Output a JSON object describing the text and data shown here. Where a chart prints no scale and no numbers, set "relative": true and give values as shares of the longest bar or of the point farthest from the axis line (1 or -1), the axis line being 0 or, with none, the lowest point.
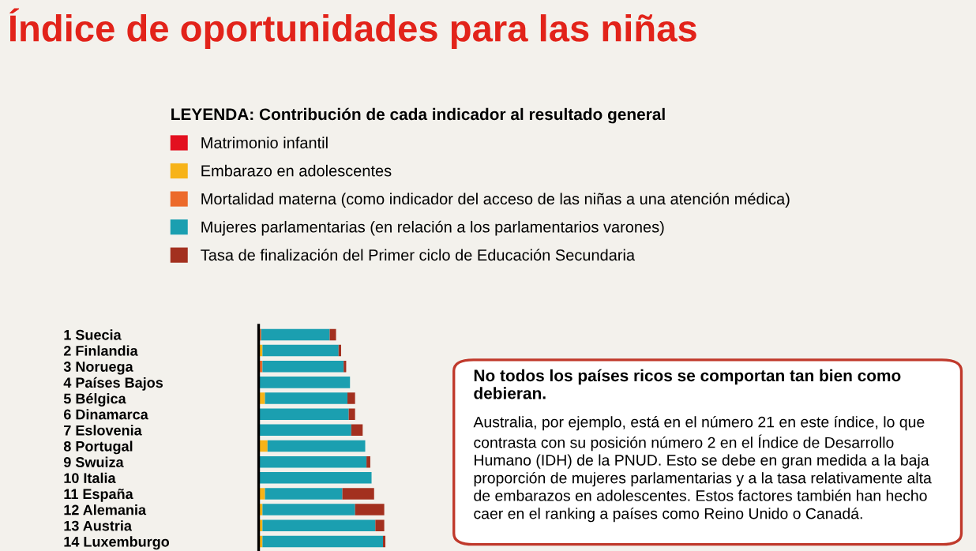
{
  "chart_data": {
    "type": "bar",
    "orientation": "horizontal",
    "stacked": true,
    "relative": true,
    "title": "Índice de oportunidades para las niñas",
    "legend_title": "LEYENDA: Contribución de cada indicador al resultado general",
    "legend": "top",
    "categories": [
      "1 Suecia",
      "2 Finlandia",
      "3 Noruega",
      "4 Países Bajos",
      "5 Bélgica",
      "6 Dinamarca",
      "7 Eslovenia",
      "8 Portugal",
      "9 Swuiza",
      "10 Italia",
      "11 España",
      "12 Alemania",
      "13 Austria",
      "14 Luxemburgo"
    ],
    "series": [
      {
        "name": "Matrimonio infantil",
        "color": "#e3101f",
        "values": [
          null,
          null,
          null,
          null,
          null,
          null,
          null,
          null,
          null,
          null,
          null,
          null,
          null,
          null
        ]
      },
      {
        "name": "Embarazo en adolescentes",
        "color": "#f7b318",
        "values": [
          null,
          0.03,
          null,
          null,
          0.05,
          null,
          null,
          0.07,
          null,
          null,
          0.05,
          0.03,
          0.03,
          0.03
        ]
      },
      {
        "name": "Mortalidad materna (como indicador del acceso de las niñas a una atención médica)",
        "color": "#ec6a2b",
        "values": [
          0.02,
          null,
          0.03,
          null,
          null,
          null,
          null,
          null,
          null,
          null,
          null,
          null,
          null,
          null
        ]
      },
      {
        "name": "Mujeres parlamentarias (en relación a los parlamentarios varones)",
        "color": "#1b9fb0",
        "values": [
          0.54,
          0.6,
          0.64,
          0.72,
          0.65,
          0.71,
          0.73,
          0.77,
          0.85,
          0.89,
          0.61,
          0.73,
          0.89,
          0.95
        ]
      },
      {
        "name": "Tasa de finalización del Primer ciclo de Educación Secundaria",
        "color": "#a3301f",
        "values": [
          0.05,
          0.02,
          0.02,
          null,
          0.06,
          0.05,
          0.09,
          null,
          0.03,
          null,
          0.25,
          0.23,
          0.07,
          0.02
        ]
      }
    ],
    "annotations": [
      "No todos los países ricos se comportan tan bien como debieran.",
      "Australia, por ejemplo, está en el número 21 en este índice, lo que contrasta con su posición número 2 en el Índice de Desarrollo Humano (IDH) de la PNUD. Esto se debe en gran medida a la baja proporción de mujeres parlamentarias y a la tasa relativamente alta de embarazos en adolescentes. Estos factores también han hecho caer en el ranking a países como Reino Unido o Canadá."
    ]
  }
}
